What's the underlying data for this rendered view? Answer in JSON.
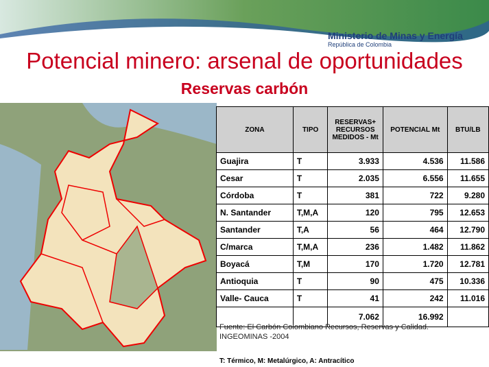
{
  "header": {
    "ministry": "Ministerio de Minas y Energía",
    "country": "República de Colombia"
  },
  "title": "Potencial minero: arsenal de oportunidades",
  "subtitle": "Reservas carbón",
  "table": {
    "columns": [
      "ZONA",
      "TIPO",
      "RESERVAS+ RECURSOS MEDIDOS - Mt",
      "POTENCIAL Mt",
      "BTU/LB"
    ],
    "rows": [
      [
        "Guajira",
        "T",
        "3.933",
        "4.536",
        "11.586"
      ],
      [
        "Cesar",
        "T",
        "2.035",
        "6.556",
        "11.655"
      ],
      [
        "Córdoba",
        "T",
        "381",
        "722",
        "9.280"
      ],
      [
        "N. Santander",
        "T,M,A",
        "120",
        "795",
        "12.653"
      ],
      [
        "Santander",
        "T,A",
        "56",
        "464",
        "12.790"
      ],
      [
        "C/marca",
        "T,M,A",
        "236",
        "1.482",
        "11.862"
      ],
      [
        "Boyacá",
        "T,M",
        "170",
        "1.720",
        "12.781"
      ],
      [
        "Antioquia",
        "T",
        "90",
        "475",
        "10.336"
      ],
      [
        "Valle- Cauca",
        "T",
        "41",
        "242",
        "11.016"
      ]
    ],
    "totals": {
      "reservas": "7.062",
      "potencial": "16.992"
    }
  },
  "source": [
    "Fuente: El Carbón Colombiano Recursos, Reservas y Calidad.",
    "INGEOMINAS -2004"
  ],
  "legend": "T: Térmico, M: Metalúrgico, A: Antracítico"
}
